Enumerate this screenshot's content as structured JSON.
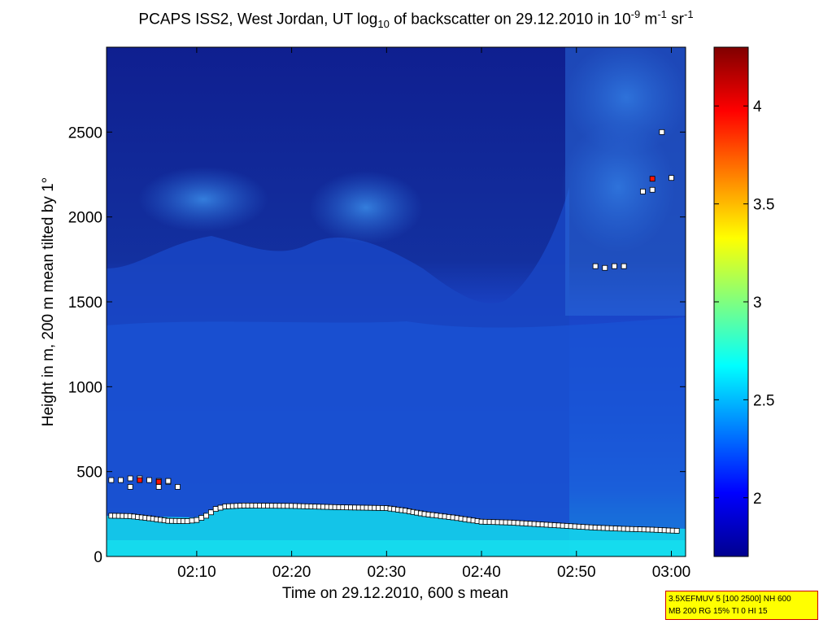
{
  "title": {
    "part1": "PCAPS ISS2, West Jordan, UT log",
    "sub": "10",
    "part2": " of backscatter on 29.12.2010 in 10",
    "sup1": "-9",
    "part3": " m",
    "sup2": "-1",
    "part4": " sr",
    "sup3": "-1"
  },
  "info_box": {
    "line1": "3.5XEFMUV 5 [100 2500] NH 600",
    "line2": "MB 200 RG 15% TI 0 HI 15"
  },
  "colors": {
    "sky_dark": "#0f1f90",
    "aerosol_cyan": "#18e0e8",
    "marker_fill": "#ffffff",
    "marker_red": "#ff1500"
  },
  "chart_data": {
    "type": "heatmap",
    "xlabel": "Time on 29.12.2010, 600 s mean",
    "ylabel": "Height in m, 200 m mean tilted by 1°",
    "xlim": [
      "02:00:30",
      "03:01:30"
    ],
    "ylim": [
      0,
      3000
    ],
    "xticks": [
      "02:10",
      "02:20",
      "02:30",
      "02:40",
      "02:50",
      "03:00"
    ],
    "yticks": [
      0,
      500,
      1000,
      1500,
      2000,
      2500
    ],
    "colorbar": {
      "range": [
        1.7,
        4.3
      ],
      "ticks": [
        2,
        2.5,
        3,
        3.5,
        4
      ],
      "colormap": "jet"
    },
    "grid": false,
    "series": [
      {
        "name": "",
        "marker": "square",
        "points_time_height": [
          [
            "02:01",
            240
          ],
          [
            "02:03",
            238
          ],
          [
            "02:05",
            225
          ],
          [
            "02:07",
            210
          ],
          [
            "02:09",
            208
          ],
          [
            "02:10",
            215
          ],
          [
            "02:11",
            240
          ],
          [
            "02:12",
            280
          ],
          [
            "02:13",
            295
          ],
          [
            "02:15",
            300
          ],
          [
            "02:20",
            298
          ],
          [
            "02:25",
            290
          ],
          [
            "02:30",
            285
          ],
          [
            "02:32",
            270
          ],
          [
            "02:34",
            250
          ],
          [
            "02:37",
            230
          ],
          [
            "02:40",
            205
          ],
          [
            "02:43",
            200
          ],
          [
            "02:46",
            190
          ],
          [
            "02:49",
            180
          ],
          [
            "02:52",
            170
          ],
          [
            "02:55",
            163
          ],
          [
            "02:58",
            158
          ],
          [
            "03:01",
            150
          ]
        ]
      },
      {
        "name": "",
        "marker": "square",
        "points_time_height": [
          [
            "02:01",
            450
          ],
          [
            "02:02",
            450
          ],
          [
            "02:03",
            460
          ],
          [
            "02:04",
            460
          ],
          [
            "02:05",
            450
          ],
          [
            "02:06",
            445
          ],
          [
            "02:07",
            440
          ],
          [
            "02:08",
            410
          ],
          [
            "02:03",
            410
          ],
          [
            "02:06",
            410
          ],
          [
            "02:07",
            445
          ],
          [
            "02:52",
            1710
          ],
          [
            "02:53",
            1700
          ],
          [
            "02:54",
            1710
          ],
          [
            "02:55",
            1710
          ],
          [
            "02:57",
            2150
          ],
          [
            "02:58",
            2160
          ],
          [
            "02:59",
            2500
          ],
          [
            "03:00",
            2230
          ]
        ]
      },
      {
        "name": "",
        "marker": "square-red",
        "points_time_height": [
          [
            "02:04",
            450
          ],
          [
            "02:06",
            440
          ],
          [
            "02:58",
            2225
          ]
        ]
      }
    ]
  }
}
